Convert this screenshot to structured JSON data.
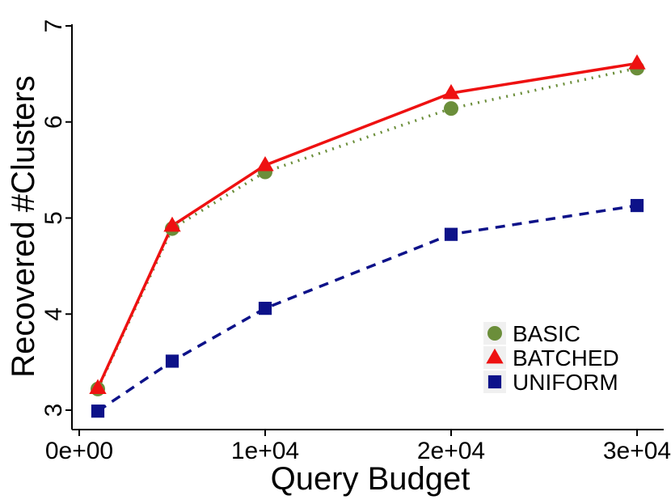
{
  "chart_data": {
    "type": "line",
    "title": "",
    "xlabel": "Query Budget",
    "ylabel": "Recovered #Clusters",
    "x": [
      1000,
      5000,
      10000,
      20000,
      30000
    ],
    "xlim": [
      0,
      30000
    ],
    "ylim": [
      3,
      7
    ],
    "x_ticks": [
      0,
      10000,
      20000,
      30000
    ],
    "x_tick_labels": [
      "0e+00",
      "1e+04",
      "2e+04",
      "3e+04"
    ],
    "y_ticks": [
      3,
      4,
      5,
      6,
      7
    ],
    "y_tick_labels": [
      "3",
      "4",
      "5",
      "6",
      "7"
    ],
    "grid": false,
    "legend_position": "bottom-right",
    "series": [
      {
        "name": "BASIC",
        "values": [
          3.22,
          4.89,
          5.48,
          6.14,
          6.56
        ],
        "color": "#6b8e3a",
        "line": "dotted",
        "marker": "circle"
      },
      {
        "name": "BATCHED",
        "values": [
          3.23,
          4.92,
          5.55,
          6.3,
          6.61
        ],
        "color": "#ee1111",
        "line": "solid",
        "marker": "triangle"
      },
      {
        "name": "UNIFORM",
        "values": [
          2.99,
          3.51,
          4.06,
          4.83,
          5.13
        ],
        "color": "#0d1289",
        "line": "dashed",
        "marker": "square"
      }
    ]
  }
}
